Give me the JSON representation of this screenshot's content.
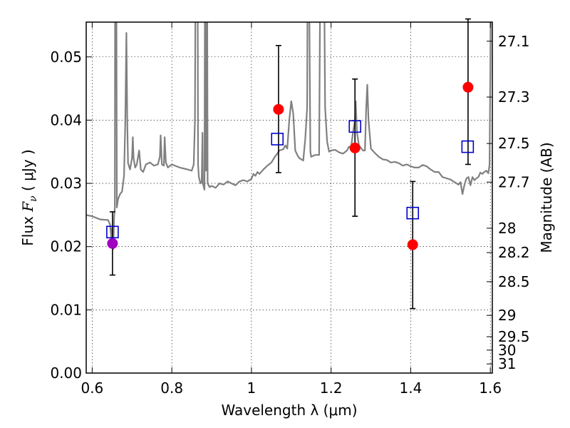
{
  "chart_data": {
    "type": "scatter",
    "title": "",
    "xlabel": "Wavelength  λ (μm)",
    "ylabel": {
      "prefix": "Flux  ",
      "symbol": "F",
      "subscript": "ν",
      "unit": "  ( μJy )"
    },
    "ylabel_right": "Magnitude (AB)",
    "xlim": [
      0.585,
      1.605
    ],
    "ylim": [
      0.0,
      0.0555
    ],
    "grid": true,
    "x_ticks": [
      {
        "value": 0.6,
        "label": "0.6"
      },
      {
        "value": 0.8,
        "label": "0.8"
      },
      {
        "value": 1.0,
        "label": "1"
      },
      {
        "value": 1.2,
        "label": "1.2"
      },
      {
        "value": 1.4,
        "label": "1.4"
      },
      {
        "value": 1.6,
        "label": "1.6"
      }
    ],
    "y_ticks": [
      {
        "value": 0.0,
        "label": "0.00"
      },
      {
        "value": 0.01,
        "label": "0.01"
      },
      {
        "value": 0.02,
        "label": "0.02"
      },
      {
        "value": 0.03,
        "label": "0.03"
      },
      {
        "value": 0.04,
        "label": "0.04"
      },
      {
        "value": 0.05,
        "label": "0.05"
      }
    ],
    "mag_ticks": [
      {
        "mag": 27.1,
        "label": "27.1"
      },
      {
        "mag": 27.3,
        "label": "27.3"
      },
      {
        "mag": 27.5,
        "label": "27.5"
      },
      {
        "mag": 27.7,
        "label": "27.7"
      },
      {
        "mag": 28.0,
        "label": "28"
      },
      {
        "mag": 28.2,
        "label": "28.2"
      },
      {
        "mag": 28.5,
        "label": "28.5"
      },
      {
        "mag": 29.0,
        "label": "29"
      },
      {
        "mag": 29.5,
        "label": "29.5"
      },
      {
        "mag": 30.0,
        "label": "30"
      },
      {
        "mag": 31.0,
        "label": "31"
      }
    ],
    "series": [
      {
        "kind": "line",
        "color": "#808080",
        "points": [
          [
            0.585,
            0.025
          ],
          [
            0.6,
            0.0248
          ],
          [
            0.62,
            0.0243
          ],
          [
            0.64,
            0.0242
          ],
          [
            0.645,
            0.0235
          ],
          [
            0.648,
            0.0214
          ],
          [
            0.65,
            0.0229
          ],
          [
            0.653,
            0.0196
          ],
          [
            0.655,
            0.0245
          ],
          [
            0.657,
            0.0262
          ],
          [
            0.658,
            0.085
          ],
          [
            0.66,
            0.085
          ],
          [
            0.662,
            0.0262
          ],
          [
            0.665,
            0.0275
          ],
          [
            0.67,
            0.0283
          ],
          [
            0.675,
            0.0287
          ],
          [
            0.68,
            0.0312
          ],
          [
            0.683,
            0.0395
          ],
          [
            0.686,
            0.0538
          ],
          [
            0.688,
            0.04
          ],
          [
            0.69,
            0.0332
          ],
          [
            0.695,
            0.0322
          ],
          [
            0.7,
            0.034
          ],
          [
            0.702,
            0.0373
          ],
          [
            0.704,
            0.034
          ],
          [
            0.708,
            0.0325
          ],
          [
            0.712,
            0.033
          ],
          [
            0.718,
            0.0352
          ],
          [
            0.722,
            0.0322
          ],
          [
            0.728,
            0.0318
          ],
          [
            0.735,
            0.033
          ],
          [
            0.745,
            0.0333
          ],
          [
            0.755,
            0.0328
          ],
          [
            0.765,
            0.033
          ],
          [
            0.77,
            0.0342
          ],
          [
            0.772,
            0.0376
          ],
          [
            0.775,
            0.033
          ],
          [
            0.78,
            0.0328
          ],
          [
            0.782,
            0.0373
          ],
          [
            0.785,
            0.0333
          ],
          [
            0.79,
            0.0325
          ],
          [
            0.8,
            0.033
          ],
          [
            0.82,
            0.0325
          ],
          [
            0.84,
            0.0322
          ],
          [
            0.85,
            0.032
          ],
          [
            0.855,
            0.033
          ],
          [
            0.858,
            0.04
          ],
          [
            0.861,
            0.085
          ],
          [
            0.864,
            0.085
          ],
          [
            0.866,
            0.033
          ],
          [
            0.868,
            0.031
          ],
          [
            0.872,
            0.03
          ],
          [
            0.875,
            0.0303
          ],
          [
            0.877,
            0.038
          ],
          [
            0.878,
            0.03
          ],
          [
            0.882,
            0.029
          ],
          [
            0.884,
            0.085
          ],
          [
            0.886,
            0.032
          ],
          [
            0.888,
            0.085
          ],
          [
            0.89,
            0.03
          ],
          [
            0.895,
            0.0294
          ],
          [
            0.9,
            0.0296
          ],
          [
            0.91,
            0.0293
          ],
          [
            0.92,
            0.03
          ],
          [
            0.93,
            0.0298
          ],
          [
            0.94,
            0.0303
          ],
          [
            0.95,
            0.03
          ],
          [
            0.96,
            0.0297
          ],
          [
            0.97,
            0.0303
          ],
          [
            0.98,
            0.0305
          ],
          [
            0.99,
            0.0303
          ],
          [
            1.0,
            0.0307
          ],
          [
            1.005,
            0.0315
          ],
          [
            1.01,
            0.0312
          ],
          [
            1.015,
            0.0318
          ],
          [
            1.02,
            0.0315
          ],
          [
            1.03,
            0.0322
          ],
          [
            1.04,
            0.0328
          ],
          [
            1.05,
            0.0333
          ],
          [
            1.06,
            0.0343
          ],
          [
            1.065,
            0.0347
          ],
          [
            1.07,
            0.0352
          ],
          [
            1.08,
            0.0354
          ],
          [
            1.085,
            0.036
          ],
          [
            1.09,
            0.0355
          ],
          [
            1.095,
            0.04
          ],
          [
            1.1,
            0.043
          ],
          [
            1.105,
            0.041
          ],
          [
            1.11,
            0.0352
          ],
          [
            1.115,
            0.0345
          ],
          [
            1.12,
            0.034
          ],
          [
            1.13,
            0.0336
          ],
          [
            1.135,
            0.037
          ],
          [
            1.14,
            0.042
          ],
          [
            1.142,
            0.085
          ],
          [
            1.148,
            0.035
          ],
          [
            1.15,
            0.0342
          ],
          [
            1.16,
            0.0345
          ],
          [
            1.17,
            0.0345
          ],
          [
            1.175,
            0.085
          ],
          [
            1.18,
            0.085
          ],
          [
            1.185,
            0.042
          ],
          [
            1.19,
            0.0366
          ],
          [
            1.195,
            0.035
          ],
          [
            1.2,
            0.0352
          ],
          [
            1.21,
            0.0353
          ],
          [
            1.22,
            0.0349
          ],
          [
            1.23,
            0.0347
          ],
          [
            1.24,
            0.0352
          ],
          [
            1.245,
            0.0358
          ],
          [
            1.25,
            0.0356
          ],
          [
            1.255,
            0.038
          ],
          [
            1.26,
            0.04
          ],
          [
            1.262,
            0.043
          ],
          [
            1.265,
            0.038
          ],
          [
            1.27,
            0.036
          ],
          [
            1.28,
            0.0352
          ],
          [
            1.285,
            0.0352
          ],
          [
            1.288,
            0.0417
          ],
          [
            1.291,
            0.0456
          ],
          [
            1.294,
            0.04
          ],
          [
            1.3,
            0.0355
          ],
          [
            1.31,
            0.0348
          ],
          [
            1.32,
            0.0342
          ],
          [
            1.33,
            0.0338
          ],
          [
            1.34,
            0.0337
          ],
          [
            1.35,
            0.0333
          ],
          [
            1.36,
            0.0334
          ],
          [
            1.37,
            0.0332
          ],
          [
            1.38,
            0.0328
          ],
          [
            1.39,
            0.033
          ],
          [
            1.4,
            0.0327
          ],
          [
            1.41,
            0.0325
          ],
          [
            1.42,
            0.0325
          ],
          [
            1.43,
            0.0329
          ],
          [
            1.44,
            0.0327
          ],
          [
            1.45,
            0.0322
          ],
          [
            1.46,
            0.0318
          ],
          [
            1.47,
            0.0318
          ],
          [
            1.48,
            0.031
          ],
          [
            1.49,
            0.0308
          ],
          [
            1.5,
            0.0306
          ],
          [
            1.51,
            0.0302
          ],
          [
            1.52,
            0.0298
          ],
          [
            1.525,
            0.0302
          ],
          [
            1.53,
            0.0283
          ],
          [
            1.535,
            0.0298
          ],
          [
            1.54,
            0.0308
          ],
          [
            1.545,
            0.031
          ],
          [
            1.55,
            0.0297
          ],
          [
            1.555,
            0.031
          ],
          [
            1.56,
            0.0305
          ],
          [
            1.565,
            0.0308
          ],
          [
            1.57,
            0.031
          ],
          [
            1.575,
            0.0317
          ],
          [
            1.58,
            0.0315
          ],
          [
            1.585,
            0.0318
          ],
          [
            1.59,
            0.032
          ],
          [
            1.595,
            0.0316
          ],
          [
            1.598,
            0.033
          ],
          [
            1.6,
            0.048
          ],
          [
            1.603,
            0.085
          ]
        ]
      },
      {
        "kind": "markers",
        "marker": "circle",
        "color": "#ff0000",
        "errorbars": true,
        "points": [
          {
            "x": 0.651,
            "y": 0.0205,
            "yerr": [
              0.0155,
              0.0255
            ],
            "color": "#a000c0"
          },
          {
            "x": 1.068,
            "y": 0.0417,
            "yerr": [
              0.0317,
              0.0518
            ]
          },
          {
            "x": 1.26,
            "y": 0.0356,
            "yerr": [
              0.0248,
              0.0465
            ]
          },
          {
            "x": 1.405,
            "y": 0.0203,
            "yerr": [
              0.0102,
              0.0303
            ]
          },
          {
            "x": 1.544,
            "y": 0.0452,
            "yerr": [
              0.033,
              0.056
            ]
          }
        ]
      },
      {
        "kind": "markers",
        "marker": "square",
        "color": "#0000cc",
        "points": [
          {
            "x": 0.651,
            "y": 0.0223
          },
          {
            "x": 1.065,
            "y": 0.037
          },
          {
            "x": 1.26,
            "y": 0.039
          },
          {
            "x": 1.405,
            "y": 0.0253
          },
          {
            "x": 1.543,
            "y": 0.0358
          }
        ]
      }
    ]
  }
}
